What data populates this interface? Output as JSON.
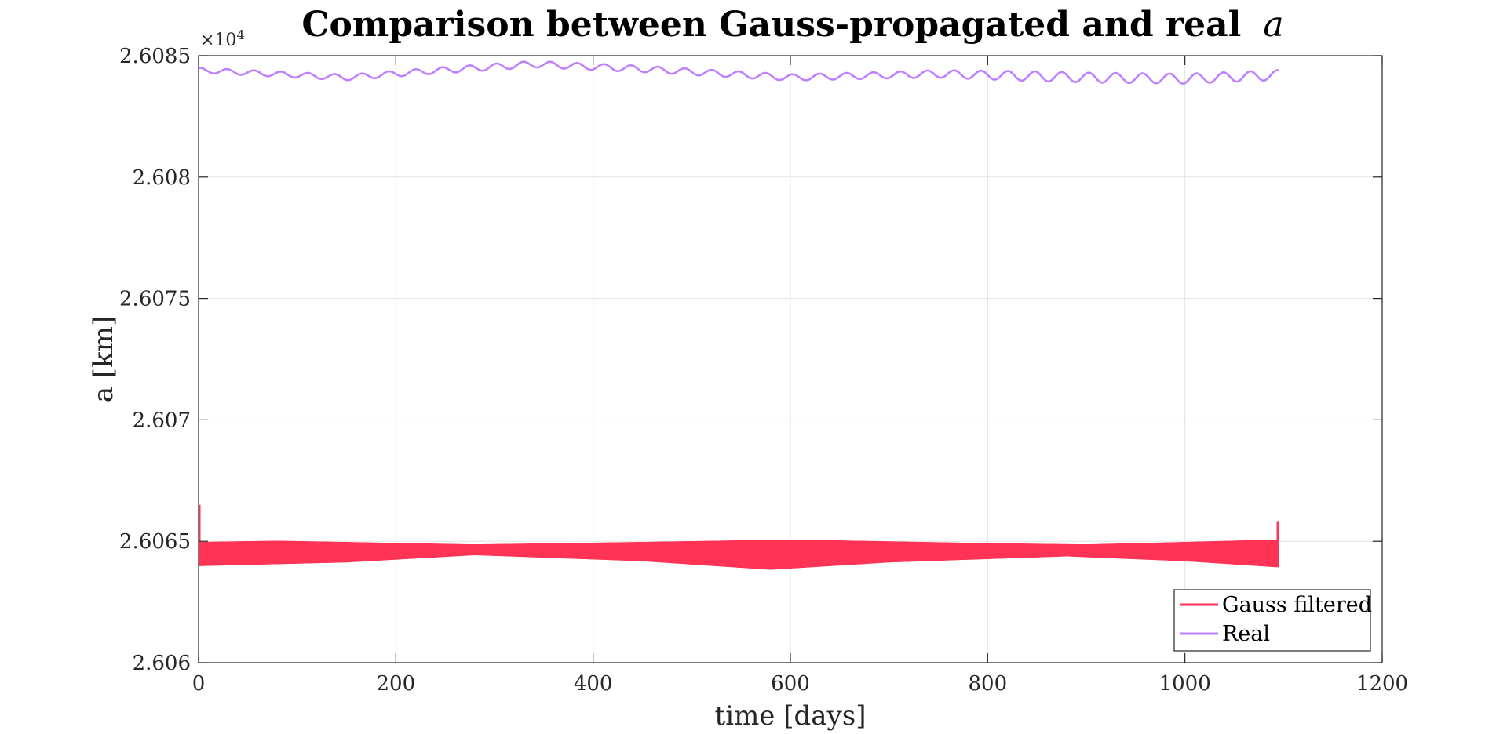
{
  "chart_data": {
    "type": "line",
    "title": "Comparison between Gauss-propagated and real",
    "title_variable": "a",
    "xlabel": "time [days]",
    "ylabel": "a [km]",
    "y_exponent_label": "×10",
    "y_exponent_power": "4",
    "xlim": [
      0,
      1200
    ],
    "ylim": [
      26060,
      26085
    ],
    "x_ticks": [
      0,
      200,
      400,
      600,
      800,
      1000,
      1200
    ],
    "x_tick_labels": [
      "0",
      "200",
      "400",
      "600",
      "800",
      "1000",
      "1200"
    ],
    "y_ticks": [
      26060,
      26065,
      26070,
      26075,
      26080,
      26085
    ],
    "y_tick_labels": [
      "2.606",
      "2.6065",
      "2.607",
      "2.6075",
      "2.608",
      "2.6085"
    ],
    "grid": true,
    "legend_position": "bottom-right",
    "series": [
      {
        "name": "Gauss filtered",
        "color": "#ff3355",
        "style": "dense-oscillation-band",
        "x_start": 0,
        "x_end": 1095,
        "start_spike": 26066.5,
        "end_spike": 26065.8,
        "band_upper": [
          [
            0,
            26064.95
          ],
          [
            80,
            26065.0
          ],
          [
            280,
            26064.85
          ],
          [
            450,
            26064.95
          ],
          [
            600,
            26065.05
          ],
          [
            800,
            26064.9
          ],
          [
            900,
            26064.85
          ],
          [
            1000,
            26064.95
          ],
          [
            1095,
            26065.05
          ]
        ],
        "band_lower": [
          [
            0,
            26064.0
          ],
          [
            150,
            26064.15
          ],
          [
            280,
            26064.45
          ],
          [
            450,
            26064.2
          ],
          [
            580,
            26063.85
          ],
          [
            700,
            26064.15
          ],
          [
            880,
            26064.4
          ],
          [
            1000,
            26064.2
          ],
          [
            1095,
            26063.95
          ]
        ]
      },
      {
        "name": "Real",
        "color": "#bf80ff",
        "style": "line",
        "x_start": 0,
        "x_end": 1095,
        "mean_curve": [
          [
            0,
            26084.4
          ],
          [
            150,
            26084.1
          ],
          [
            230,
            26084.35
          ],
          [
            340,
            26084.65
          ],
          [
            450,
            26084.45
          ],
          [
            600,
            26084.1
          ],
          [
            750,
            26084.25
          ],
          [
            900,
            26084.1
          ],
          [
            1000,
            26084.05
          ],
          [
            1095,
            26084.2
          ]
        ],
        "amplitude_curve": [
          [
            0,
            0.1
          ],
          [
            300,
            0.13
          ],
          [
            700,
            0.13
          ],
          [
            850,
            0.2
          ],
          [
            1095,
            0.2
          ]
        ],
        "oscillation_period_days": 27.3
      }
    ]
  }
}
